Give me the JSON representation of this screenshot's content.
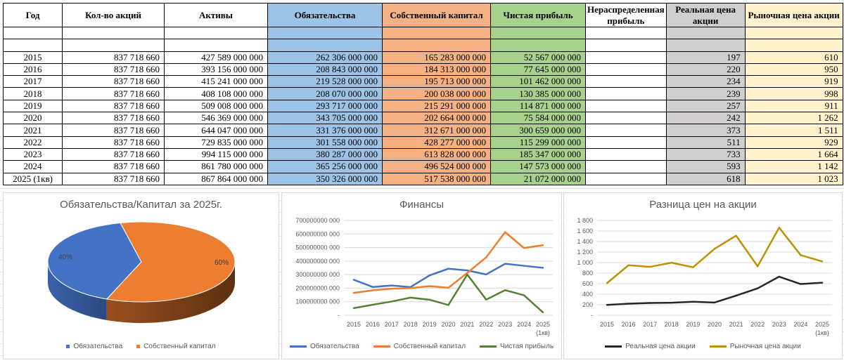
{
  "table": {
    "headers": [
      "Год",
      "Кол-во акций",
      "Активы",
      "Обязательства",
      "Собственный капитал",
      "Чистая прибыль",
      "Нераспределенная прибыль",
      "Реальная цена акции",
      "Рыночная цена акции"
    ],
    "rows": [
      [
        "2015",
        "837 718 660",
        "427 589 000 000",
        "262 306 000 000",
        "165 283 000 000",
        "52 567 000 000",
        "",
        "197",
        "610"
      ],
      [
        "2016",
        "837 718 660",
        "393 156 000 000",
        "208 843 000 000",
        "184 313 000 000",
        "77 645 000 000",
        "",
        "220",
        "950"
      ],
      [
        "2017",
        "837 718 660",
        "415 241 000 000",
        "219 528 000 000",
        "195 713 000 000",
        "101 462 000 000",
        "",
        "234",
        "919"
      ],
      [
        "2018",
        "837 718 660",
        "408 108 000 000",
        "208 070 000 000",
        "200 038 000 000",
        "130 385 000 000",
        "",
        "239",
        "998"
      ],
      [
        "2019",
        "837 718 660",
        "509 008 000 000",
        "293 717 000 000",
        "215 291 000 000",
        "114 871 000 000",
        "",
        "257",
        "911"
      ],
      [
        "2020",
        "837 718 660",
        "546 369 000 000",
        "343 705 000 000",
        "202 664 000 000",
        "75 584 000 000",
        "",
        "242",
        "1 262"
      ],
      [
        "2021",
        "837 718 660",
        "644 047 000 000",
        "331 376 000 000",
        "312 671 000 000",
        "300 659 000 000",
        "",
        "373",
        "1 511"
      ],
      [
        "2022",
        "837 718 660",
        "729 835 000 000",
        "301 558 000 000",
        "428 277 000 000",
        "115 299 000 000",
        "",
        "511",
        "929"
      ],
      [
        "2023",
        "837 718 660",
        "994 115 000 000",
        "380 287 000 000",
        "613 828 000 000",
        "185 347 000 000",
        "",
        "733",
        "1 664"
      ],
      [
        "2024",
        "837 718 660",
        "861 780 000 000",
        "365 256 000 000",
        "496 524 000 000",
        "147 573 000 000",
        "",
        "593",
        "1 142"
      ],
      [
        "2025 (1кв)",
        "837 718 660",
        "867 864 000 000",
        "350 326 000 000",
        "517 538 000 000",
        "21 072 000 000",
        "",
        "618",
        "1 023"
      ]
    ]
  },
  "chart_data": [
    {
      "type": "pie",
      "title": "Обязательства/Капитал за 2025г.",
      "categories": [
        "Обязательства",
        "Собственный капитал"
      ],
      "values": [
        350326000000,
        517538000000
      ],
      "labels": [
        "40%",
        "60%"
      ],
      "colors": [
        "#4472c4",
        "#ed7d31"
      ],
      "legend": "bottom"
    },
    {
      "type": "line",
      "title": "Финансы",
      "categories": [
        "2015",
        "2016",
        "2017",
        "2018",
        "2019",
        "2020",
        "2021",
        "2022",
        "2023",
        "2024",
        "2025 (1кв)"
      ],
      "ylim": [
        0,
        700000000000
      ],
      "yticks": [
        "-",
        "100000000 000",
        "200000000 000",
        "300000000 000",
        "400000000 000",
        "500000000 000",
        "600000000 000",
        "700000000 000"
      ],
      "grid": true,
      "legend": "bottom",
      "series": [
        {
          "name": "Обязательства",
          "color": "#4472c4",
          "values": [
            262306000000,
            208843000000,
            219528000000,
            208070000000,
            293717000000,
            343705000000,
            331376000000,
            301558000000,
            380287000000,
            365256000000,
            350326000000
          ]
        },
        {
          "name": "Собственный капитал",
          "color": "#ed7d31",
          "values": [
            165283000000,
            184313000000,
            195713000000,
            200038000000,
            215291000000,
            202664000000,
            312671000000,
            428277000000,
            613828000000,
            496524000000,
            517538000000
          ]
        },
        {
          "name": "Чистая прибыль",
          "color": "#548235",
          "values": [
            52567000000,
            77645000000,
            101462000000,
            130385000000,
            114871000000,
            75584000000,
            300659000000,
            115299000000,
            185347000000,
            147573000000,
            21072000000
          ]
        }
      ]
    },
    {
      "type": "line",
      "title": "Разница цен на акции",
      "categories": [
        "2015",
        "2016",
        "2017",
        "2018",
        "2019",
        "2020",
        "2021",
        "2022",
        "2023",
        "2024",
        "2025 (1кв)"
      ],
      "ylim": [
        0,
        1800
      ],
      "yticks": [
        "-",
        "200",
        "400",
        "600",
        "800",
        "1 000",
        "1 200",
        "1 400",
        "1 600",
        "1 800"
      ],
      "grid": true,
      "legend": "bottom",
      "series": [
        {
          "name": "Реальная цена акции",
          "color": "#262626",
          "values": [
            197,
            220,
            234,
            239,
            257,
            242,
            373,
            511,
            733,
            593,
            618
          ]
        },
        {
          "name": "Рыночная цена акции",
          "color": "#bf9000",
          "values": [
            610,
            950,
            919,
            998,
            911,
            1262,
            1511,
            929,
            1664,
            1142,
            1023
          ]
        }
      ]
    }
  ]
}
